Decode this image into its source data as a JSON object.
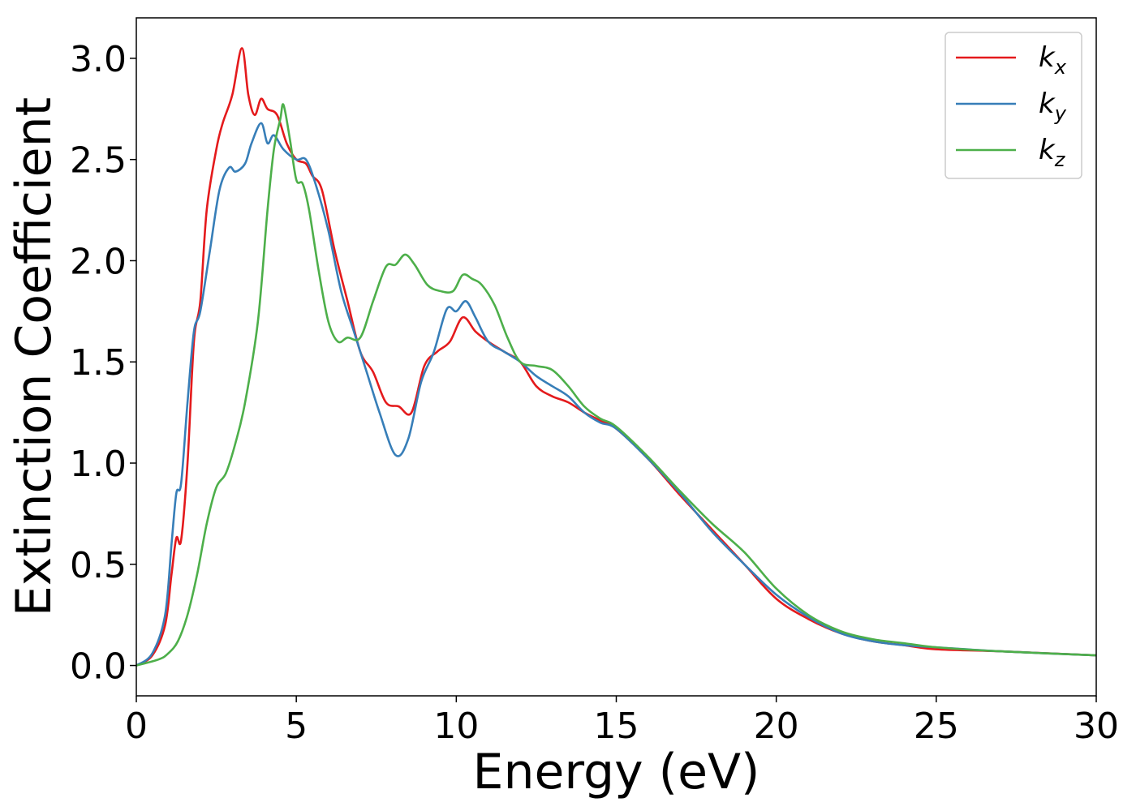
{
  "chart_data": {
    "type": "line",
    "title": "",
    "xlabel": "Energy (eV)",
    "ylabel": "Extinction Coefficient",
    "xlim": [
      0,
      30
    ],
    "ylim": [
      -0.15,
      3.2
    ],
    "xticks": [
      0,
      5,
      10,
      15,
      20,
      25,
      30
    ],
    "xtick_labels": [
      "0",
      "5",
      "10",
      "15",
      "20",
      "25",
      "30"
    ],
    "yticks": [
      0.0,
      0.5,
      1.0,
      1.5,
      2.0,
      2.5,
      3.0
    ],
    "ytick_labels": [
      "0.0",
      "0.5",
      "1.0",
      "1.5",
      "2.0",
      "2.5",
      "3.0"
    ],
    "grid": false,
    "legend_position": "top-right",
    "series": [
      {
        "name": "k_x",
        "label_main": "k",
        "label_sub": "x",
        "color": "#e41a1c",
        "x": [
          0,
          0.5,
          0.9,
          1.1,
          1.25,
          1.4,
          1.6,
          1.8,
          2.0,
          2.2,
          2.5,
          2.7,
          3.0,
          3.3,
          3.5,
          3.7,
          3.9,
          4.1,
          4.4,
          4.7,
          5.0,
          5.3,
          5.5,
          5.8,
          6.2,
          6.6,
          7.0,
          7.4,
          7.8,
          8.2,
          8.6,
          9.0,
          9.4,
          9.8,
          10.2,
          10.6,
          11.0,
          11.5,
          12.0,
          12.5,
          13.0,
          13.5,
          14.0,
          14.5,
          15.0,
          16.0,
          17.0,
          18.0,
          19.0,
          20.0,
          21.0,
          22.0,
          23.0,
          24.0,
          25.0,
          27.0,
          30.0
        ],
        "y": [
          0.0,
          0.05,
          0.2,
          0.45,
          0.63,
          0.62,
          1.0,
          1.6,
          1.8,
          2.25,
          2.55,
          2.68,
          2.82,
          3.05,
          2.82,
          2.72,
          2.8,
          2.75,
          2.72,
          2.58,
          2.5,
          2.48,
          2.42,
          2.35,
          2.05,
          1.8,
          1.55,
          1.45,
          1.3,
          1.28,
          1.25,
          1.48,
          1.55,
          1.6,
          1.72,
          1.65,
          1.6,
          1.55,
          1.5,
          1.38,
          1.33,
          1.3,
          1.25,
          1.21,
          1.17,
          1.02,
          0.84,
          0.67,
          0.5,
          0.33,
          0.23,
          0.16,
          0.12,
          0.1,
          0.08,
          0.07,
          0.05
        ]
      },
      {
        "name": "k_y",
        "label_main": "k",
        "label_sub": "y",
        "color": "#377eb8",
        "x": [
          0,
          0.5,
          0.9,
          1.1,
          1.25,
          1.4,
          1.6,
          1.8,
          2.0,
          2.3,
          2.6,
          2.9,
          3.1,
          3.4,
          3.6,
          3.9,
          4.1,
          4.3,
          4.6,
          5.0,
          5.3,
          5.6,
          6.0,
          6.4,
          6.8,
          7.2,
          7.6,
          8.1,
          8.5,
          8.9,
          9.3,
          9.7,
          10.0,
          10.3,
          10.6,
          11.0,
          11.5,
          12.0,
          12.5,
          13.0,
          13.5,
          14.0,
          14.5,
          15.0,
          16.0,
          17.0,
          18.0,
          19.0,
          20.0,
          21.0,
          22.0,
          23.0,
          24.0,
          25.0,
          27.0,
          30.0
        ],
        "y": [
          0.0,
          0.06,
          0.25,
          0.6,
          0.85,
          0.9,
          1.3,
          1.65,
          1.75,
          2.05,
          2.35,
          2.46,
          2.44,
          2.48,
          2.58,
          2.68,
          2.58,
          2.62,
          2.55,
          2.5,
          2.5,
          2.38,
          2.15,
          1.85,
          1.65,
          1.45,
          1.25,
          1.04,
          1.12,
          1.4,
          1.55,
          1.76,
          1.75,
          1.8,
          1.72,
          1.6,
          1.55,
          1.5,
          1.43,
          1.38,
          1.33,
          1.25,
          1.2,
          1.17,
          1.02,
          0.85,
          0.66,
          0.5,
          0.35,
          0.24,
          0.16,
          0.12,
          0.1,
          0.09,
          0.07,
          0.05
        ]
      },
      {
        "name": "k_z",
        "label_main": "k",
        "label_sub": "z",
        "color": "#4daf4a",
        "x": [
          0,
          0.7,
          1.0,
          1.3,
          1.6,
          1.9,
          2.2,
          2.5,
          2.8,
          3.1,
          3.4,
          3.8,
          4.1,
          4.3,
          4.5,
          4.6,
          4.8,
          5.0,
          5.2,
          5.4,
          5.7,
          6.0,
          6.3,
          6.6,
          7.0,
          7.4,
          7.8,
          8.1,
          8.4,
          8.7,
          9.1,
          9.5,
          9.9,
          10.2,
          10.5,
          10.8,
          11.2,
          11.6,
          12.0,
          12.5,
          13.0,
          13.5,
          14.0,
          14.5,
          15.0,
          16.0,
          17.0,
          18.0,
          19.0,
          20.0,
          21.0,
          22.0,
          23.0,
          24.0,
          25.0,
          27.0,
          30.0
        ],
        "y": [
          0.0,
          0.03,
          0.06,
          0.12,
          0.25,
          0.45,
          0.7,
          0.88,
          0.95,
          1.1,
          1.3,
          1.7,
          2.25,
          2.55,
          2.7,
          2.77,
          2.6,
          2.4,
          2.38,
          2.25,
          1.95,
          1.7,
          1.6,
          1.62,
          1.62,
          1.8,
          1.97,
          1.98,
          2.03,
          1.98,
          1.88,
          1.85,
          1.85,
          1.93,
          1.91,
          1.88,
          1.78,
          1.62,
          1.5,
          1.48,
          1.46,
          1.38,
          1.28,
          1.22,
          1.18,
          1.03,
          0.86,
          0.7,
          0.56,
          0.38,
          0.25,
          0.17,
          0.13,
          0.11,
          0.09,
          0.07,
          0.05
        ]
      }
    ]
  }
}
